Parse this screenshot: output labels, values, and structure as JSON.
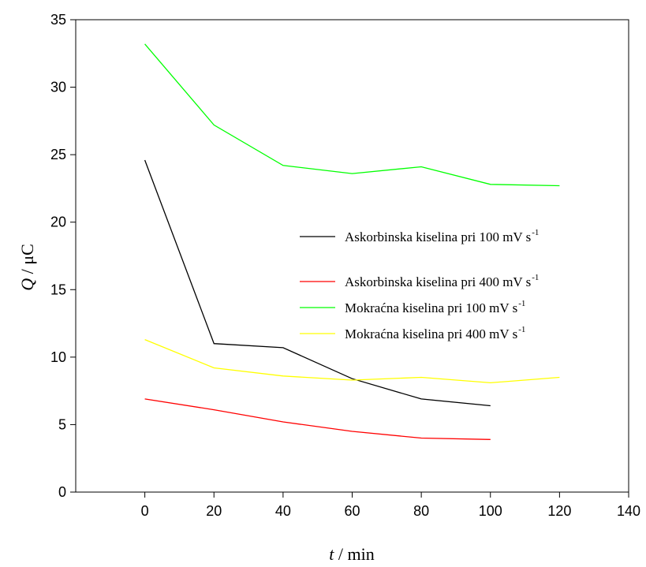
{
  "chart_data": {
    "type": "line",
    "xlabel_var": "t",
    "xlabel_unit": "/ min",
    "ylabel_var": "Q",
    "ylabel_unit": "/ μC",
    "xlim": [
      -20,
      140
    ],
    "ylim": [
      0,
      35
    ],
    "xticks": [
      0,
      20,
      40,
      60,
      80,
      100,
      120,
      140
    ],
    "yticks": [
      0,
      5,
      10,
      15,
      20,
      25,
      30,
      35
    ],
    "grid": false,
    "legend_position": "center-right",
    "series": [
      {
        "name": "Askorbinska kiselina pri 100 mV s",
        "name_sup": "-1",
        "color": "#000000",
        "x": [
          0,
          20,
          40,
          60,
          80,
          100
        ],
        "y": [
          24.6,
          11.0,
          10.7,
          8.4,
          6.9,
          6.4
        ]
      },
      {
        "name": "Askorbinska kiselina pri 400 mV s",
        "name_sup": "-1",
        "color": "#ff0000",
        "x": [
          0,
          20,
          40,
          60,
          80,
          100
        ],
        "y": [
          6.9,
          6.1,
          5.2,
          4.5,
          4.0,
          3.9
        ]
      },
      {
        "name": "Mokraćna kiselina pri 100 mV s",
        "name_sup": "-1",
        "color": "#00ff00",
        "x": [
          0,
          20,
          40,
          60,
          80,
          100,
          120
        ],
        "y": [
          33.2,
          27.2,
          24.2,
          23.6,
          24.1,
          22.8,
          22.7
        ]
      },
      {
        "name": "Mokraćna kiselina pri 400 mV s",
        "name_sup": "-1",
        "color": "#ffff00",
        "x": [
          0,
          20,
          40,
          60,
          80,
          100,
          120
        ],
        "y": [
          11.3,
          9.2,
          8.6,
          8.3,
          8.5,
          8.1,
          8.5
        ]
      }
    ]
  }
}
